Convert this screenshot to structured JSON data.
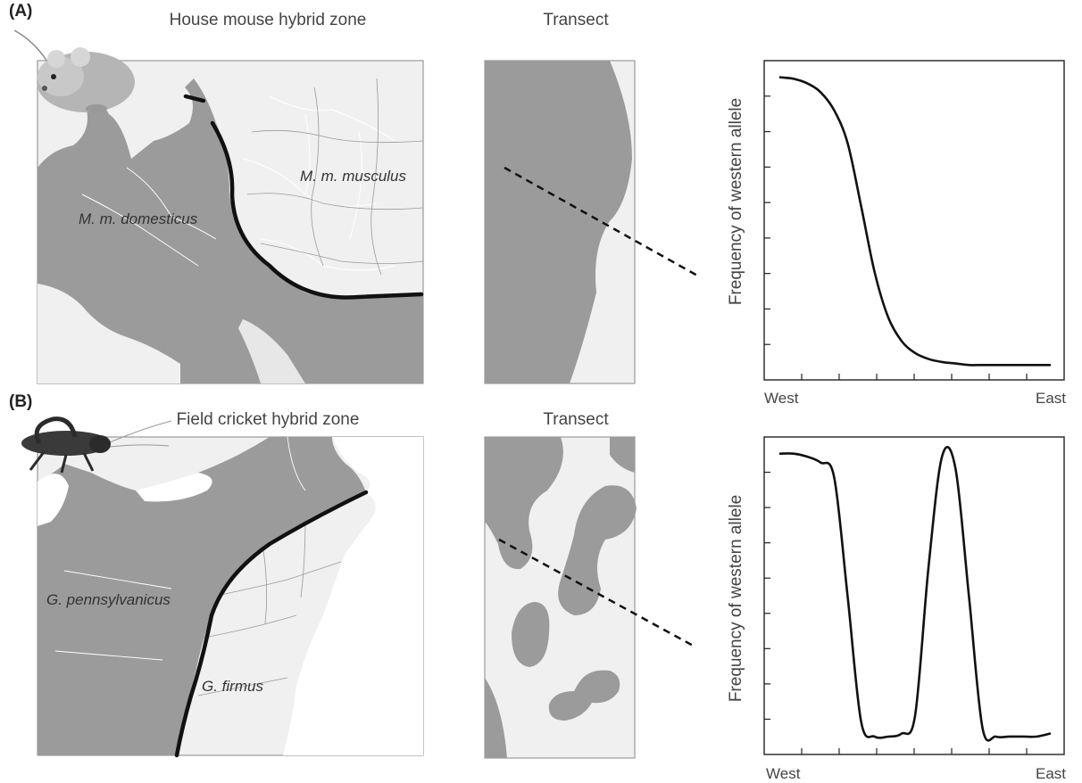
{
  "panels": [
    {
      "letter": "(A)",
      "map_title": "House mouse hybrid zone",
      "transect_title": "Transect",
      "labels": {
        "west_species": "M. m. domesticus",
        "east_species": "M. m. musculus"
      },
      "icon": "mouse-icon"
    },
    {
      "letter": "(B)",
      "map_title": "Field cricket hybrid zone",
      "transect_title": "Transect",
      "labels": {
        "west_species": "G. pennsylvanicus",
        "east_species": "G. firmus"
      },
      "icon": "cricket-icon"
    }
  ],
  "chart_data": [
    {
      "type": "line",
      "ylabel": "Frequency of western allele",
      "x_start_label": "West",
      "x_end_label": "East",
      "x": [
        0,
        0.05,
        0.1,
        0.15,
        0.2,
        0.25,
        0.3,
        0.35,
        0.4,
        0.45,
        0.5,
        0.55,
        0.6,
        0.65,
        0.7,
        0.75,
        0.8,
        0.85,
        0.9,
        0.95,
        1.0
      ],
      "values": [
        0.98,
        0.975,
        0.96,
        0.93,
        0.87,
        0.76,
        0.55,
        0.33,
        0.18,
        0.1,
        0.06,
        0.04,
        0.03,
        0.025,
        0.02,
        0.02,
        0.02,
        0.02,
        0.02,
        0.02,
        0.02
      ],
      "colors": {
        "line": "#111111",
        "axis": "#222222"
      }
    },
    {
      "type": "line",
      "ylabel": "Frequency of western allele",
      "x_start_label": "West",
      "x_end_label": "East",
      "x": [
        0,
        0.05,
        0.1,
        0.15,
        0.2,
        0.25,
        0.3,
        0.35,
        0.4,
        0.45,
        0.5,
        0.55,
        0.6,
        0.65,
        0.7,
        0.75,
        0.8,
        0.85,
        0.9,
        0.95,
        1.0
      ],
      "values": [
        0.98,
        0.98,
        0.97,
        0.95,
        0.9,
        0.5,
        0.08,
        0.03,
        0.03,
        0.04,
        0.1,
        0.6,
        0.97,
        0.93,
        0.5,
        0.06,
        0.03,
        0.03,
        0.03,
        0.03,
        0.04
      ],
      "colors": {
        "line": "#111111",
        "axis": "#222222"
      }
    }
  ],
  "colors": {
    "land_dark": "#9b9b9b",
    "land_light": "#f0f0f0",
    "border": "#ffffff",
    "zone_line": "#111111"
  }
}
